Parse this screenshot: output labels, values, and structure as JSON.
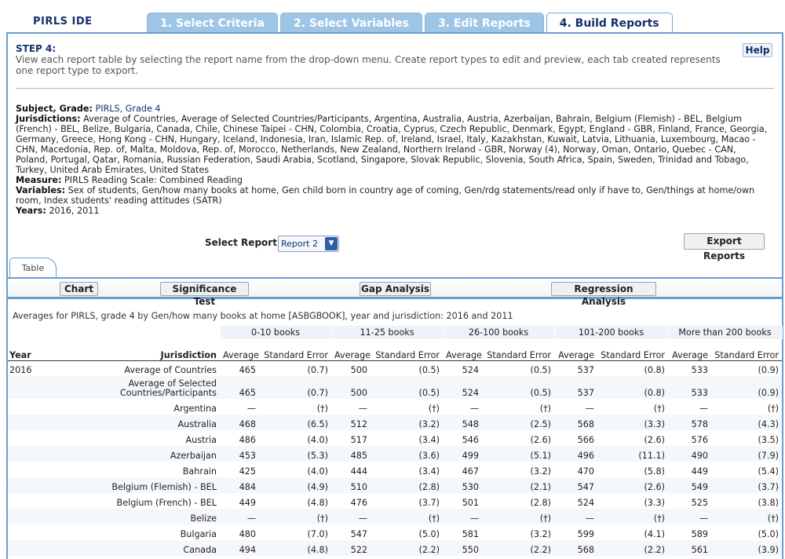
{
  "app": {
    "logo": "PIRLS IDE"
  },
  "wizard_tabs": [
    {
      "label": "1. Select Criteria",
      "active": false
    },
    {
      "label": "2. Select Variables",
      "active": false
    },
    {
      "label": "3. Edit Reports",
      "active": false
    },
    {
      "label": "4. Build Reports",
      "active": true
    }
  ],
  "step": {
    "title": "STEP 4:",
    "description": "View each report table by selecting the report name from the drop-down menu. Create report types to edit and preview, each tab created represents one report type to export.",
    "help_label": "Help"
  },
  "info": {
    "subject_label": "Subject, Grade:",
    "subject_value": "PIRLS, Grade 4",
    "jurisdictions_label": "Jurisdictions:",
    "jurisdictions_value": "Average of Countries, Average of Selected Countries/Participants, Argentina, Australia, Austria, Azerbaijan, Bahrain, Belgium (Flemish) - BEL, Belgium (French) - BEL, Belize, Bulgaria, Canada, Chile, Chinese Taipei - CHN, Colombia, Croatia, Cyprus, Czech Republic, Denmark, Egypt, England - GBR, Finland, France, Georgia, Germany, Greece, Hong Kong - CHN, Hungary, Iceland, Indonesia, Iran, Islamic Rep. of, Ireland, Israel, Italy, Kazakhstan, Kuwait, Latvia, Lithuania, Luxembourg, Macao - CHN, Macedonia, Rep. of, Malta, Moldova, Rep. of, Morocco, Netherlands, New Zealand, Northern Ireland - GBR, Norway (4), Norway, Oman, Ontario, Quebec - CAN, Poland, Portugal, Qatar, Romania, Russian Federation, Saudi Arabia, Scotland, Singapore, Slovak Republic, Slovenia, South Africa, Spain, Sweden, Trinidad and Tobago, Turkey, United Arab Emirates, United States",
    "measure_label": "Measure:",
    "measure_value": "PIRLS Reading Scale: Combined Reading",
    "variables_label": "Variables:",
    "variables_value": "Sex of students, Gen/how many books at home, Gen child born in country age of coming, Gen/rdg statements/read only if have to, Gen/things at home/own room, Index students' reading attitudes (SATR)",
    "years_label": "Years:",
    "years_value": "2016, 2011"
  },
  "report_select": {
    "label": "Select Report:",
    "value": "Report 2"
  },
  "export_label": "Export Reports",
  "table_tab_label": "Table",
  "toolbar": {
    "chart": "Chart",
    "significance": "Significance Test",
    "gap": "Gap Analysis",
    "regression": "Regression Analysis"
  },
  "caption": "Averages for PIRLS, grade 4 by Gen/how many books at home [ASBGBOOK], year and jurisdiction: 2016 and 2011",
  "table": {
    "groups": [
      "0-10 books",
      "11-25 books",
      "26-100 books",
      "101-200 books",
      "More than 200 books"
    ],
    "col_year": "Year",
    "col_jurisdiction": "Jurisdiction",
    "col_average": "Average",
    "col_se": "Standard Error",
    "rows": [
      {
        "year": "2016",
        "jur": "Average of Countries",
        "v": [
          "465",
          "(0.7)",
          "500",
          "(0.5)",
          "524",
          "(0.5)",
          "537",
          "(0.8)",
          "533",
          "(0.9)"
        ]
      },
      {
        "year": "",
        "jur": "Average of Selected Countries/Participants",
        "v": [
          "465",
          "(0.7)",
          "500",
          "(0.5)",
          "524",
          "(0.5)",
          "537",
          "(0.8)",
          "533",
          "(0.9)"
        ]
      },
      {
        "year": "",
        "jur": "Argentina",
        "v": [
          "—",
          "(†)",
          "—",
          "(†)",
          "—",
          "(†)",
          "—",
          "(†)",
          "—",
          "(†)"
        ]
      },
      {
        "year": "",
        "jur": "Australia",
        "v": [
          "468",
          "(6.5)",
          "512",
          "(3.2)",
          "548",
          "(2.5)",
          "568",
          "(3.3)",
          "578",
          "(4.3)"
        ]
      },
      {
        "year": "",
        "jur": "Austria",
        "v": [
          "486",
          "(4.0)",
          "517",
          "(3.4)",
          "546",
          "(2.6)",
          "566",
          "(2.6)",
          "576",
          "(3.5)"
        ]
      },
      {
        "year": "",
        "jur": "Azerbaijan",
        "v": [
          "453",
          "(5.3)",
          "485",
          "(3.6)",
          "499",
          "(5.1)",
          "496",
          "(11.1)",
          "490",
          "(7.9)"
        ]
      },
      {
        "year": "",
        "jur": "Bahrain",
        "v": [
          "425",
          "(4.0)",
          "444",
          "(3.4)",
          "467",
          "(3.2)",
          "470",
          "(5.8)",
          "449",
          "(5.4)"
        ]
      },
      {
        "year": "",
        "jur": "Belgium (Flemish) - BEL",
        "v": [
          "484",
          "(4.9)",
          "510",
          "(2.8)",
          "530",
          "(2.1)",
          "547",
          "(2.6)",
          "549",
          "(3.7)"
        ]
      },
      {
        "year": "",
        "jur": "Belgium (French) - BEL",
        "v": [
          "449",
          "(4.8)",
          "476",
          "(3.7)",
          "501",
          "(2.8)",
          "524",
          "(3.3)",
          "525",
          "(3.8)"
        ]
      },
      {
        "year": "",
        "jur": "Belize",
        "v": [
          "—",
          "(†)",
          "—",
          "(†)",
          "—",
          "(†)",
          "—",
          "(†)",
          "—",
          "(†)"
        ]
      },
      {
        "year": "",
        "jur": "Bulgaria",
        "v": [
          "480",
          "(7.0)",
          "547",
          "(5.0)",
          "581",
          "(3.2)",
          "599",
          "(4.1)",
          "589",
          "(5.0)"
        ]
      },
      {
        "year": "",
        "jur": "Canada",
        "v": [
          "494",
          "(4.8)",
          "522",
          "(2.2)",
          "550",
          "(2.2)",
          "568",
          "(2.2)",
          "561",
          "(3.9)"
        ]
      }
    ]
  }
}
